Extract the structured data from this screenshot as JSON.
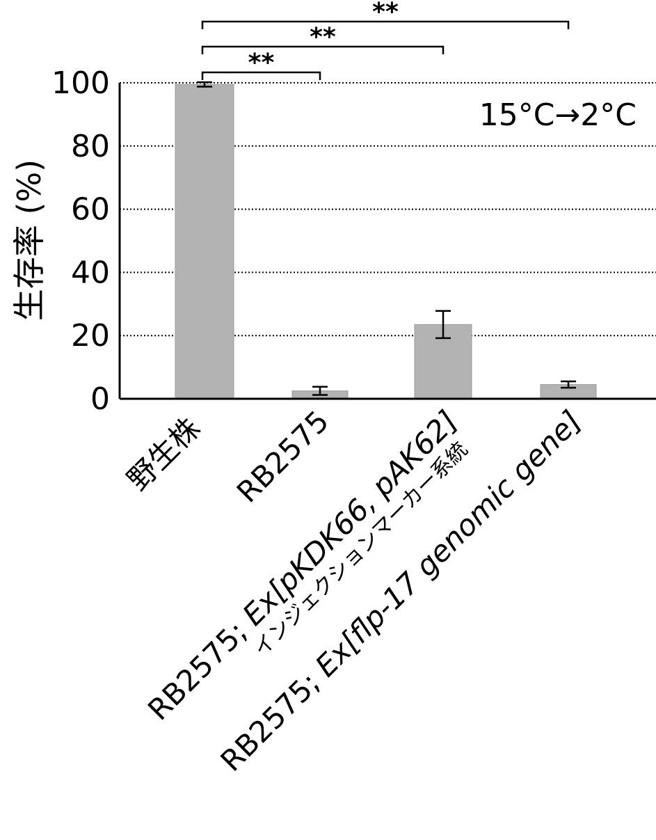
{
  "chart_data": {
    "type": "bar",
    "ylabel": "生存率 (%)",
    "ylim": [
      0,
      100
    ],
    "yticks": [
      0,
      20,
      40,
      60,
      80,
      100
    ],
    "grid": "horizontal-dotted",
    "annotation": "15°C→2°C",
    "bar_color": "#b3b3b3",
    "categories": [
      {
        "line1": "野生株",
        "line1_italic_from": null,
        "line2": ""
      },
      {
        "line1": "RB2575",
        "line1_italic_from": null,
        "line2": ""
      },
      {
        "line1_plain": "RB2575; ",
        "line1_italic": "Ex[pKDK66, pAK62]",
        "line2": "インジェクションマーカー系統"
      },
      {
        "line1_plain": "RB2575; ",
        "line1_italic": "Ex[flp-17 genomic gene]",
        "line2": ""
      }
    ],
    "values": [
      99.5,
      2.5,
      23.5,
      4.5
    ],
    "errors": [
      0.7,
      1.3,
      4.3,
      1.0
    ],
    "significance": [
      {
        "from": 0,
        "to": 1,
        "label": "**"
      },
      {
        "from": 0,
        "to": 2,
        "label": "**"
      },
      {
        "from": 0,
        "to": 3,
        "label": "**"
      }
    ]
  }
}
